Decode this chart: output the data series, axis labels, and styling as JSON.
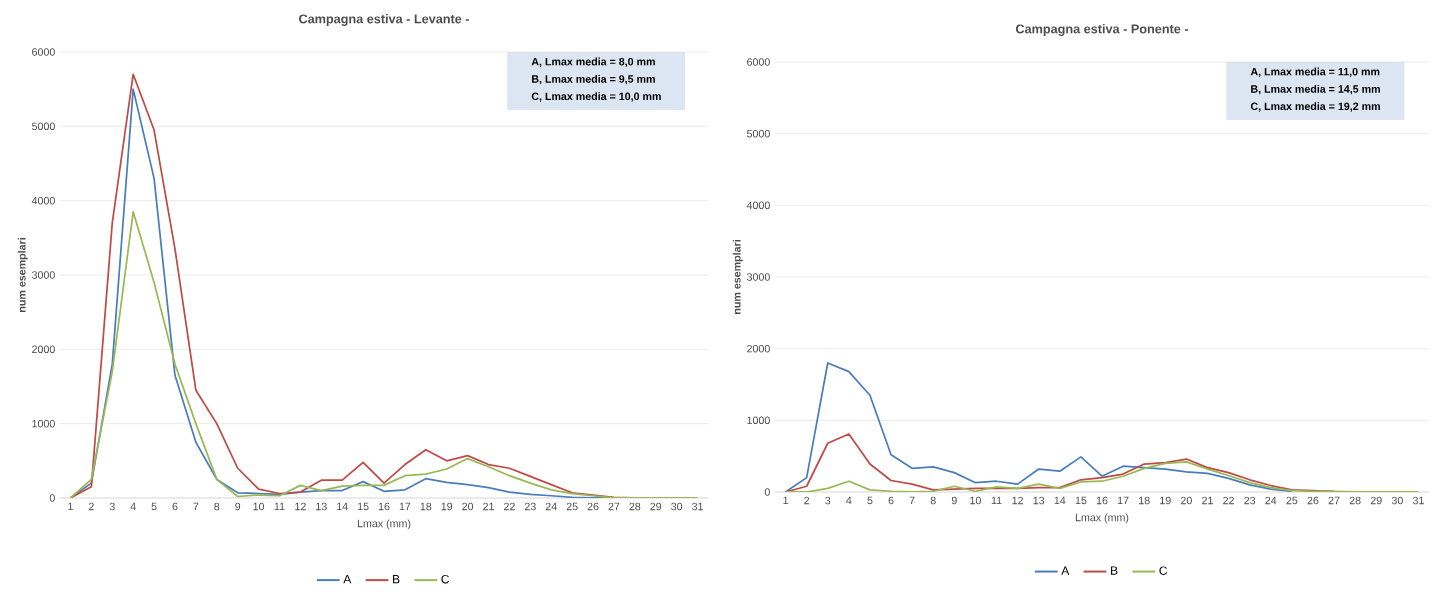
{
  "chart_data": [
    {
      "type": "line",
      "title": "Campagna estiva - Levante -",
      "xlabel": "Lmax (mm)",
      "ylabel": "num esemplari",
      "categories": [
        "1",
        "2",
        "3",
        "4",
        "5",
        "6",
        "7",
        "8",
        "9",
        "10",
        "11",
        "12",
        "13",
        "14",
        "15",
        "16",
        "17",
        "18",
        "19",
        "20",
        "21",
        "22",
        "23",
        "24",
        "25",
        "26",
        "27",
        "28",
        "29",
        "30",
        "31"
      ],
      "series": [
        {
          "name": "A",
          "color": "#4a7ebb",
          "values": [
            0,
            200,
            1800,
            5500,
            4300,
            1650,
            750,
            250,
            70,
            60,
            50,
            80,
            100,
            100,
            220,
            90,
            110,
            260,
            210,
            180,
            140,
            80,
            50,
            30,
            10,
            0,
            0,
            0,
            null,
            null,
            null
          ]
        },
        {
          "name": "B",
          "color": "#be4b48",
          "values": [
            0,
            150,
            3700,
            5700,
            4950,
            3350,
            1450,
            1000,
            400,
            120,
            60,
            80,
            240,
            240,
            480,
            200,
            450,
            650,
            500,
            570,
            450,
            400,
            290,
            180,
            70,
            40,
            10,
            0,
            null,
            null,
            null
          ]
        },
        {
          "name": "C",
          "color": "#98b954",
          "values": [
            0,
            250,
            1700,
            3850,
            2900,
            1800,
            1000,
            250,
            20,
            40,
            30,
            170,
            100,
            160,
            170,
            170,
            300,
            320,
            390,
            530,
            420,
            300,
            200,
            110,
            60,
            30,
            0,
            0,
            0,
            0,
            0
          ]
        }
      ],
      "ylim": [
        0,
        6000
      ],
      "yticks": [
        0,
        1000,
        2000,
        3000,
        4000,
        5000,
        6000
      ],
      "grid": "y",
      "legend": "bottom",
      "annotations": [
        "A, Lmax media = 8,0 mm",
        "B, Lmax media = 9,5 mm",
        "C, Lmax media =  10,0 mm"
      ]
    },
    {
      "type": "line",
      "title": "Campagna estiva - Ponente -",
      "xlabel": "Lmax (mm)",
      "ylabel": "num esemplari",
      "categories": [
        "1",
        "2",
        "3",
        "4",
        "5",
        "6",
        "7",
        "8",
        "9",
        "10",
        "11",
        "12",
        "13",
        "14",
        "15",
        "16",
        "17",
        "18",
        "19",
        "20",
        "21",
        "22",
        "23",
        "24",
        "25",
        "26",
        "27",
        "28",
        "29",
        "30",
        "31"
      ],
      "series": [
        {
          "name": "A",
          "color": "#4a7ebb",
          "values": [
            0,
            200,
            1800,
            1680,
            1350,
            520,
            330,
            350,
            270,
            130,
            150,
            110,
            320,
            290,
            490,
            220,
            360,
            340,
            320,
            280,
            260,
            190,
            100,
            40,
            10,
            null,
            null,
            null,
            null,
            null,
            null
          ]
        },
        {
          "name": "B",
          "color": "#be4b48",
          "values": [
            0,
            80,
            680,
            810,
            390,
            160,
            110,
            30,
            40,
            50,
            50,
            50,
            60,
            60,
            170,
            200,
            250,
            390,
            410,
            460,
            340,
            270,
            170,
            90,
            30,
            20,
            10,
            null,
            null,
            null,
            null
          ]
        },
        {
          "name": "C",
          "color": "#98b954",
          "values": [
            0,
            0,
            50,
            150,
            30,
            10,
            0,
            10,
            80,
            10,
            70,
            50,
            110,
            50,
            140,
            150,
            220,
            330,
            400,
            420,
            320,
            230,
            130,
            60,
            20,
            10,
            10,
            0,
            0,
            0,
            0
          ]
        }
      ],
      "ylim": [
        0,
        6000
      ],
      "yticks": [
        0,
        1000,
        2000,
        3000,
        4000,
        5000,
        6000
      ],
      "grid": "y",
      "legend": "bottom",
      "annotations": [
        "A, Lmax media = 11,0 mm",
        "B, Lmax media = 14,5 mm",
        "C, Lmax media =  19,2 mm"
      ]
    }
  ]
}
